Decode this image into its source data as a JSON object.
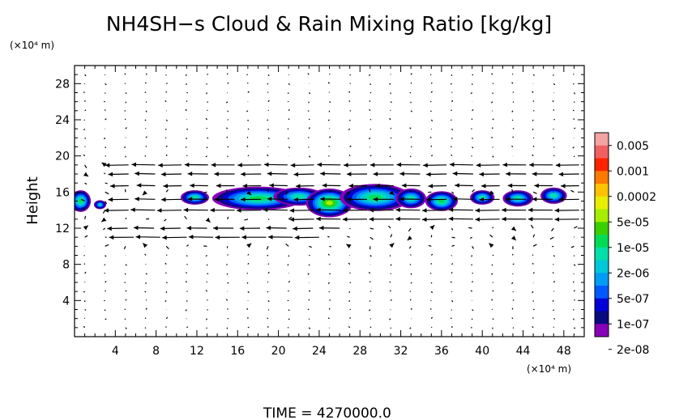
{
  "chart_data": {
    "type": "heatmap",
    "title": "NH4SH−s Cloud & Rain Mixing Ratio [kg/kg]",
    "ylabel": "Height",
    "x_unit": "(×10⁴ m)",
    "y_unit": "(×10⁴ m)",
    "footer_label": "TIME",
    "time_value": "4270000.0",
    "xlim": [
      0,
      50
    ],
    "ylim": [
      0,
      30
    ],
    "x_ticks": [
      "4",
      "8",
      "12",
      "16",
      "20",
      "24",
      "28",
      "32",
      "36",
      "40",
      "44",
      "48"
    ],
    "y_ticks": [
      "4",
      "8",
      "12",
      "16",
      "20",
      "24",
      "28"
    ],
    "colorbar": {
      "labels": [
        "0.005",
        "0.001",
        "0.0002",
        "5e-05",
        "1e-05",
        "2e-06",
        "5e-07",
        "1e-07",
        "2e-08"
      ],
      "colors": [
        "#f4a3a3",
        "#f06060",
        "#ff2200",
        "#ff7a00",
        "#ffc200",
        "#e8ee00",
        "#a6ee00",
        "#3ad000",
        "#00dd55",
        "#00e0a8",
        "#00c8d8",
        "#009cf5",
        "#0058ff",
        "#0000d8",
        "#0a0a80",
        "#8800b8"
      ]
    },
    "cloud_blobs": [
      {
        "x": 0.6,
        "y": 15.0,
        "rx": 1.0,
        "ry": 1.2,
        "level": 8
      },
      {
        "x": 2.5,
        "y": 14.6,
        "rx": 0.6,
        "ry": 0.5,
        "level": 10
      },
      {
        "x": 11.8,
        "y": 15.4,
        "rx": 1.4,
        "ry": 0.8,
        "level": 9
      },
      {
        "x": 18.0,
        "y": 15.3,
        "rx": 4.5,
        "ry": 1.3,
        "level": 8
      },
      {
        "x": 22.0,
        "y": 15.5,
        "rx": 2.5,
        "ry": 1.0,
        "level": 9
      },
      {
        "x": 25.0,
        "y": 14.8,
        "rx": 2.3,
        "ry": 1.6,
        "level": 6
      },
      {
        "x": 29.5,
        "y": 15.4,
        "rx": 3.5,
        "ry": 1.5,
        "level": 8
      },
      {
        "x": 33.0,
        "y": 15.3,
        "rx": 1.5,
        "ry": 1.1,
        "level": 9
      },
      {
        "x": 36.0,
        "y": 15.0,
        "rx": 1.6,
        "ry": 1.1,
        "level": 8
      },
      {
        "x": 40.0,
        "y": 15.4,
        "rx": 1.2,
        "ry": 0.8,
        "level": 9
      },
      {
        "x": 43.5,
        "y": 15.3,
        "rx": 1.5,
        "ry": 0.9,
        "level": 9
      },
      {
        "x": 47.0,
        "y": 15.6,
        "rx": 1.3,
        "ry": 0.9,
        "level": 9
      }
    ],
    "wind_jets": [
      {
        "x0": 3.5,
        "x1": 49.5,
        "y": 19.0,
        "u": -2.3
      },
      {
        "x0": 3.5,
        "x1": 49.5,
        "y": 18.0,
        "u": -2.0
      },
      {
        "x0": 3.5,
        "x1": 49.5,
        "y": 16.7,
        "u": -1.8
      },
      {
        "x0": 3.5,
        "x1": 49.5,
        "y": 15.2,
        "u": -2.0
      },
      {
        "x0": 3.5,
        "x1": 49.5,
        "y": 14.0,
        "u": -2.4
      },
      {
        "x0": 23.0,
        "x1": 49.5,
        "y": 13.0,
        "u": -2.4
      },
      {
        "x0": 3.5,
        "x1": 26.0,
        "y": 12.0,
        "u": -2.0
      },
      {
        "x0": 3.5,
        "x1": 24.0,
        "y": 11.0,
        "u": -2.4
      }
    ]
  }
}
